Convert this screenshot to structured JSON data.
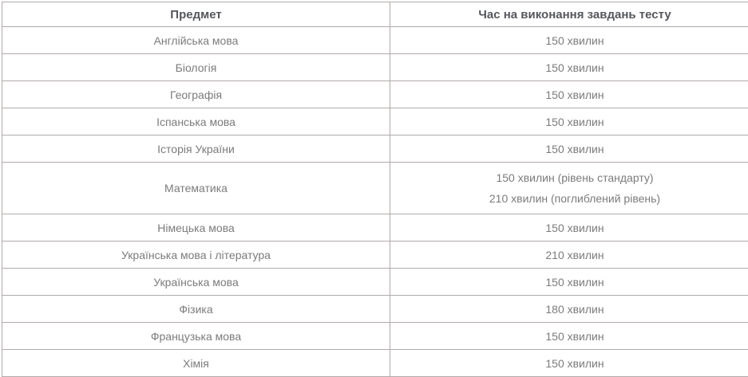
{
  "colors": {
    "border": "#b1aaaa",
    "header_text": "#55575c",
    "body_text": "#7b7b7b",
    "background": "#ffffff"
  },
  "table": {
    "columns": [
      "Предмет",
      "Час на виконання завдань тесту"
    ],
    "rows": [
      {
        "subject": "Англійська мова",
        "time": [
          "150 хвилин"
        ]
      },
      {
        "subject": "Біологія",
        "time": [
          "150 хвилин"
        ]
      },
      {
        "subject": "Географія",
        "time": [
          "150 хвилин"
        ]
      },
      {
        "subject": "Іспанська мова",
        "time": [
          "150 хвилин"
        ]
      },
      {
        "subject": "Історія України",
        "time": [
          "150 хвилин"
        ]
      },
      {
        "subject": "Математика",
        "time": [
          "150 хвилин (рівень стандарту)",
          "210 хвилин (поглиблений рівень)"
        ]
      },
      {
        "subject": "Німецька мова",
        "time": [
          "150 хвилин"
        ]
      },
      {
        "subject": "Українська мова і література",
        "time": [
          "210 хвилин"
        ]
      },
      {
        "subject": "Українська мова",
        "time": [
          "150 хвилин"
        ]
      },
      {
        "subject": "Фізика",
        "time": [
          "180 хвилин"
        ]
      },
      {
        "subject": "Французька мова",
        "time": [
          "150 хвилин"
        ]
      },
      {
        "subject": "Хімія",
        "time": [
          "150 хвилин"
        ]
      }
    ]
  }
}
